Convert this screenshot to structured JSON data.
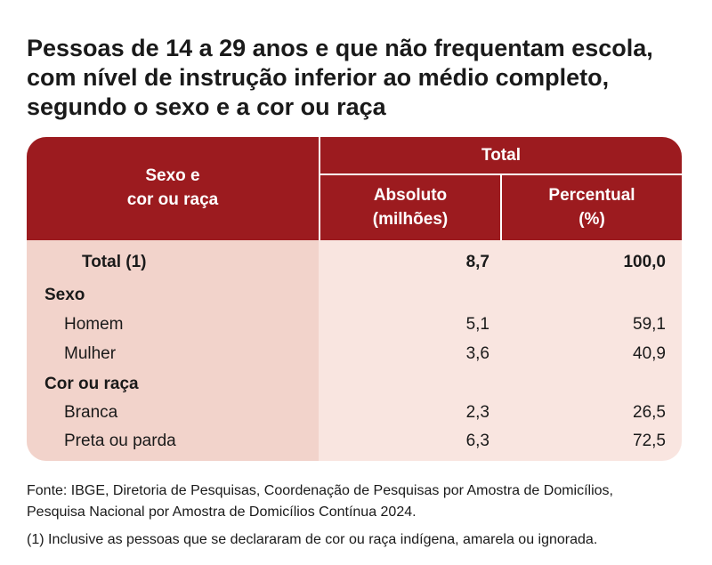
{
  "title_lines": [
    "Pessoas de 14 a 29 anos e que não frequentam escola,",
    "com nível de instrução inferior ao médio completo,",
    "segundo o sexo e a cor ou raça"
  ],
  "header": {
    "row_label_line1": "Sexo e",
    "row_label_line2": "cor ou raça",
    "group": "Total",
    "col1_line1": "Absoluto",
    "col1_line2": "(milhões)",
    "col2_line1": "Percentual",
    "col2_line2": "(%)"
  },
  "rows": [
    {
      "label": "Total (1)",
      "absolute": "8,7",
      "percent": "100,0"
    },
    {
      "label": "Sexo",
      "absolute": "",
      "percent": ""
    },
    {
      "label": "Homem",
      "absolute": "5,1",
      "percent": "59,1"
    },
    {
      "label": "Mulher",
      "absolute": "3,6",
      "percent": "40,9"
    },
    {
      "label": "Cor ou raça",
      "absolute": "",
      "percent": ""
    },
    {
      "label": "Branca",
      "absolute": "2,3",
      "percent": "26,5"
    },
    {
      "label": "Preta ou parda",
      "absolute": "6,3",
      "percent": "72,5"
    }
  ],
  "source_lines": [
    "Fonte: IBGE, Diretoria de Pesquisas, Coordenação de Pesquisas por Amostra de Domicílios,",
    "Pesquisa Nacional por Amostra de Domicílios Contínua 2024."
  ],
  "footnote": "(1) Inclusive as pessoas que se declararam de cor ou raça indígena, amarela ou ignorada.",
  "colors": {
    "header": "#9c1b1f",
    "label_column": "#f2d3cb",
    "value_columns": "#f9e5e0"
  },
  "chart_data": {
    "type": "table",
    "columns": [
      "Absoluto (milhões)",
      "Percentual (%)"
    ],
    "rows": [
      {
        "label": "Total (1)",
        "values": [
          8.7,
          100.0
        ]
      },
      {
        "label": "Homem",
        "group": "Sexo",
        "values": [
          5.1,
          59.1
        ]
      },
      {
        "label": "Mulher",
        "group": "Sexo",
        "values": [
          3.6,
          40.9
        ]
      },
      {
        "label": "Branca",
        "group": "Cor ou raça",
        "values": [
          2.3,
          26.5
        ]
      },
      {
        "label": "Preta ou parda",
        "group": "Cor ou raça",
        "values": [
          6.3,
          72.5
        ]
      }
    ]
  }
}
